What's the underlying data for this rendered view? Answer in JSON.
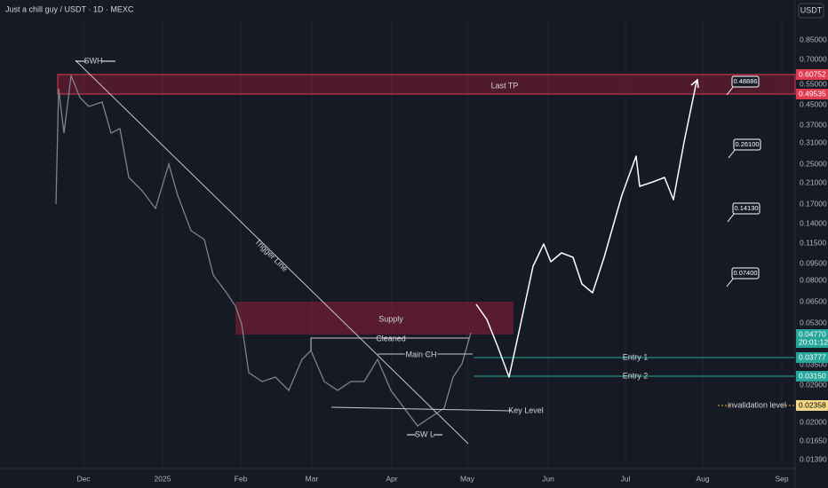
{
  "header": {
    "symbol": "Just a chill guy / USDT · 1D · MEXC",
    "currency_button": "USDT"
  },
  "price_axis": [
    "0.85000",
    "0.70000",
    "0.55000",
    "0.45000",
    "0.37000",
    "0.31000",
    "0.25000",
    "0.21000",
    "0.17000",
    "0.14000",
    "0.11500",
    "0.09500",
    "0.08000",
    "0.06500",
    "0.05300",
    "0.03500",
    "0.02900",
    "0.02000",
    "0.01650",
    "0.01390"
  ],
  "price_tags": {
    "last_tp_top": "0.60752",
    "last_tp_bottom": "0.49535",
    "current": "0.04770",
    "countdown": "20:01:12",
    "entry_1": "0.03777",
    "entry_2": "0.03150",
    "invalidation": "0.02358"
  },
  "date_axis": [
    "Dec",
    "2025",
    "Feb",
    "Mar",
    "Apr",
    "May",
    "Jun",
    "Jul",
    "Aug",
    "Sep"
  ],
  "annotations": {
    "swh": "SWH",
    "last_tp": "Last TP",
    "trigger_line": "Trigger Line",
    "supply": "Supply",
    "cleaned": "Cleaned",
    "main_ch": "Main CH",
    "entry_1": "Entry 1",
    "entry_2": "Entry 2",
    "key_level": "Key Level",
    "swl": "SW L",
    "invalidation": "invalidation level"
  },
  "targets": [
    "0.48886",
    "0.26100",
    "0.14130",
    "0.07400"
  ]
}
